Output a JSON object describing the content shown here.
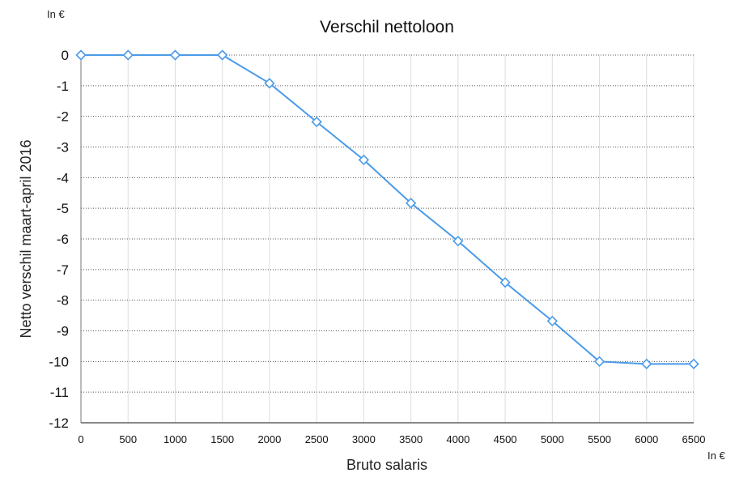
{
  "chart_data": {
    "type": "line",
    "title": "Verschil nettoloon",
    "xlabel": "Bruto salaris",
    "ylabel": "Netto verschil maart-april 2016",
    "x_unit": "In €",
    "y_unit": "In €",
    "xlim": [
      0,
      6500
    ],
    "ylim": [
      -12,
      0
    ],
    "x_ticks": [
      0,
      500,
      1000,
      1500,
      2000,
      2500,
      3000,
      3500,
      4000,
      4500,
      5000,
      5500,
      6000,
      6500
    ],
    "y_ticks": [
      0,
      -1,
      -2,
      -3,
      -4,
      -5,
      -6,
      -7,
      -8,
      -9,
      -10,
      -11,
      -12
    ],
    "grid": true,
    "legend": "none",
    "series": [
      {
        "x": [
          0,
          500,
          1000,
          1500,
          2000,
          2500,
          3000,
          3500,
          4000,
          4500,
          5000,
          5500,
          6000,
          6500
        ],
        "values": [
          0,
          0,
          0,
          0,
          -0.92,
          -2.18,
          -3.42,
          -4.83,
          -6.07,
          -7.42,
          -8.68,
          -10.0,
          -10.08,
          -10.08
        ],
        "color": "#4a9be8",
        "marker": "diamond"
      }
    ]
  }
}
